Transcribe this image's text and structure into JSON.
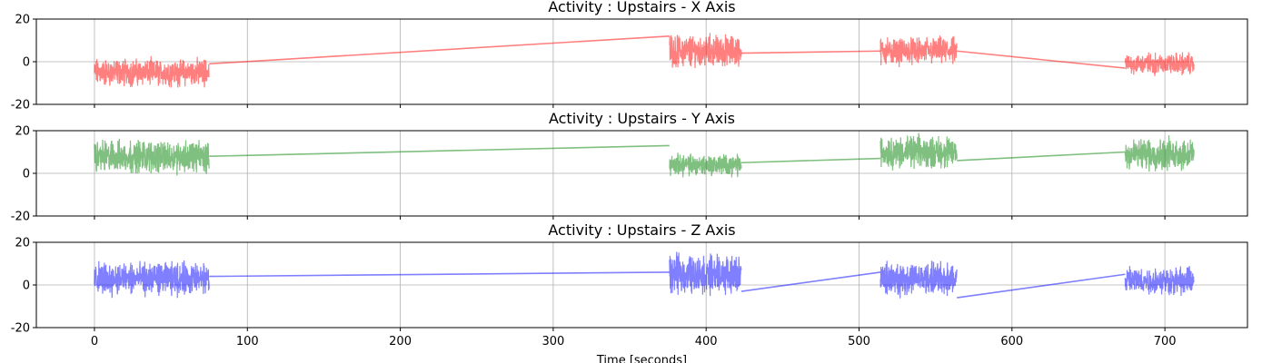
{
  "chart_data": [
    {
      "type": "line",
      "title": "Activity : Upstairs - X Axis",
      "color": "#ff0000",
      "ylim": [
        -20,
        20
      ],
      "yticks": [
        -20,
        0,
        20
      ],
      "grid": true,
      "segments": [
        {
          "x": [
            0,
            75
          ],
          "center": -5,
          "amp": 5
        },
        {
          "x": [
            376,
            423
          ],
          "center": 5,
          "amp": 6
        },
        {
          "x": [
            514,
            564
          ],
          "center": 5,
          "amp": 5
        },
        {
          "x": [
            674,
            719
          ],
          "center": -1,
          "amp": 4
        }
      ],
      "connectors": [
        {
          "x": [
            75,
            376
          ],
          "y": [
            -1,
            12
          ]
        },
        {
          "x": [
            423,
            514
          ],
          "y": [
            4,
            5
          ]
        },
        {
          "x": [
            564,
            674
          ],
          "y": [
            5,
            -3
          ]
        }
      ]
    },
    {
      "type": "line",
      "title": "Activity : Upstairs - Y Axis",
      "color": "#008000",
      "ylim": [
        -20,
        20
      ],
      "yticks": [
        -20,
        0,
        20
      ],
      "grid": true,
      "segments": [
        {
          "x": [
            0,
            75
          ],
          "center": 8,
          "amp": 6
        },
        {
          "x": [
            376,
            423
          ],
          "center": 4,
          "amp": 4
        },
        {
          "x": [
            514,
            564
          ],
          "center": 10,
          "amp": 6
        },
        {
          "x": [
            674,
            719
          ],
          "center": 9,
          "amp": 6
        }
      ],
      "connectors": [
        {
          "x": [
            75,
            376
          ],
          "y": [
            8,
            13
          ]
        },
        {
          "x": [
            423,
            514
          ],
          "y": [
            5,
            7
          ]
        },
        {
          "x": [
            564,
            674
          ],
          "y": [
            6,
            10
          ]
        }
      ]
    },
    {
      "type": "line",
      "title": "Activity : Upstairs - Z Axis",
      "color": "#0000ff",
      "ylim": [
        -20,
        20
      ],
      "yticks": [
        -20,
        0,
        20
      ],
      "grid": true,
      "segments": [
        {
          "x": [
            0,
            75
          ],
          "center": 3,
          "amp": 6
        },
        {
          "x": [
            376,
            423
          ],
          "center": 5,
          "amp": 7
        },
        {
          "x": [
            514,
            564
          ],
          "center": 3,
          "amp": 6
        },
        {
          "x": [
            674,
            719
          ],
          "center": 2,
          "amp": 5
        }
      ],
      "connectors": [
        {
          "x": [
            75,
            376
          ],
          "y": [
            4,
            6
          ]
        },
        {
          "x": [
            423,
            514
          ],
          "y": [
            -3,
            6
          ]
        },
        {
          "x": [
            564,
            674
          ],
          "y": [
            -6,
            5
          ]
        }
      ]
    }
  ],
  "xaxis": {
    "label": "Time [seconds]",
    "xlim": [
      -38,
      754
    ],
    "ticks": [
      0,
      100,
      200,
      300,
      400,
      500,
      600,
      700
    ]
  }
}
